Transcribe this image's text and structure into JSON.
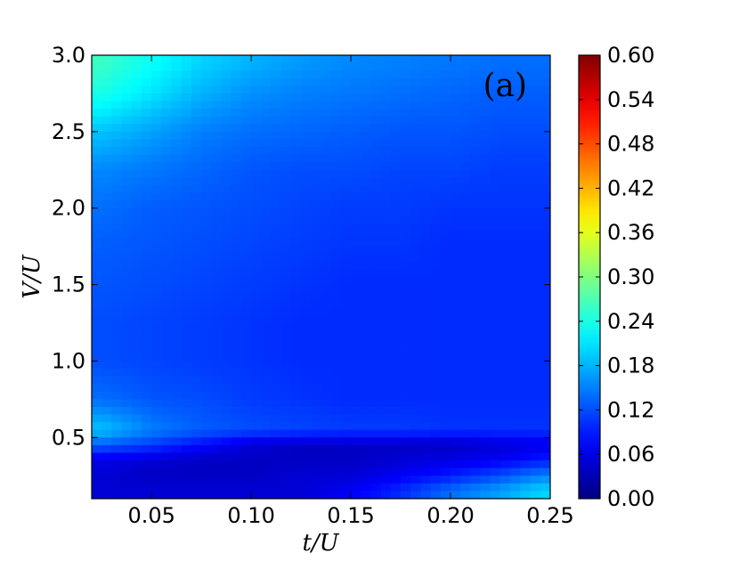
{
  "chart_data": {
    "type": "heatmap",
    "panel_label": "(a)",
    "xlabel": "t/U",
    "ylabel": "V/U",
    "xlim": [
      0.02,
      0.25
    ],
    "ylim": [
      0.1,
      3.0
    ],
    "x_ticks": [
      {
        "value": 0.05,
        "label": "0.05"
      },
      {
        "value": 0.1,
        "label": "0.10"
      },
      {
        "value": 0.15,
        "label": "0.15"
      },
      {
        "value": 0.2,
        "label": "0.20"
      },
      {
        "value": 0.25,
        "label": "0.25"
      }
    ],
    "y_ticks": [
      {
        "value": 0.5,
        "label": "0.5"
      },
      {
        "value": 1.0,
        "label": "1.0"
      },
      {
        "value": 1.5,
        "label": "1.5"
      },
      {
        "value": 2.0,
        "label": "2.0"
      },
      {
        "value": 2.5,
        "label": "2.5"
      },
      {
        "value": 3.0,
        "label": "3.0"
      }
    ],
    "colorbar": {
      "colormap": "jet",
      "range": [
        0.0,
        0.6
      ],
      "ticks": [
        {
          "value": 0.0,
          "label": "0.00"
        },
        {
          "value": 0.06,
          "label": "0.06"
        },
        {
          "value": 0.12,
          "label": "0.12"
        },
        {
          "value": 0.18,
          "label": "0.18"
        },
        {
          "value": 0.24,
          "label": "0.24"
        },
        {
          "value": 0.3,
          "label": "0.30"
        },
        {
          "value": 0.36,
          "label": "0.36"
        },
        {
          "value": 0.42,
          "label": "0.42"
        },
        {
          "value": 0.48,
          "label": "0.48"
        },
        {
          "value": 0.54,
          "label": "0.54"
        },
        {
          "value": 0.6,
          "label": "0.60"
        }
      ]
    },
    "x": [
      0.025,
      0.05,
      0.075,
      0.1,
      0.125,
      0.15,
      0.175,
      0.2,
      0.225,
      0.245
    ],
    "y": [
      0.15,
      0.25,
      0.35,
      0.45,
      0.55,
      0.75,
      1.0,
      1.25,
      1.5,
      1.75,
      2.0,
      2.25,
      2.5,
      2.75,
      2.95
    ],
    "values": [
      [
        0.05,
        0.05,
        0.05,
        0.05,
        0.05,
        0.07,
        0.1,
        0.14,
        0.17,
        0.2
      ],
      [
        0.05,
        0.04,
        0.04,
        0.04,
        0.05,
        0.05,
        0.07,
        0.09,
        0.12,
        0.15
      ],
      [
        0.06,
        0.05,
        0.04,
        0.04,
        0.04,
        0.04,
        0.05,
        0.06,
        0.07,
        0.09
      ],
      [
        0.13,
        0.11,
        0.08,
        0.05,
        0.04,
        0.04,
        0.04,
        0.04,
        0.05,
        0.06
      ],
      [
        0.19,
        0.15,
        0.13,
        0.12,
        0.115,
        0.11,
        0.11,
        0.105,
        0.105,
        0.105
      ],
      [
        0.14,
        0.125,
        0.12,
        0.11,
        0.105,
        0.1,
        0.1,
        0.1,
        0.1,
        0.1
      ],
      [
        0.12,
        0.115,
        0.11,
        0.105,
        0.1,
        0.1,
        0.1,
        0.1,
        0.1,
        0.1
      ],
      [
        0.12,
        0.115,
        0.11,
        0.105,
        0.1,
        0.1,
        0.1,
        0.1,
        0.1,
        0.1
      ],
      [
        0.125,
        0.12,
        0.115,
        0.11,
        0.105,
        0.1,
        0.1,
        0.1,
        0.1,
        0.1
      ],
      [
        0.13,
        0.125,
        0.12,
        0.115,
        0.11,
        0.105,
        0.105,
        0.1,
        0.1,
        0.1
      ],
      [
        0.14,
        0.13,
        0.125,
        0.12,
        0.115,
        0.11,
        0.11,
        0.105,
        0.105,
        0.105
      ],
      [
        0.155,
        0.145,
        0.135,
        0.125,
        0.12,
        0.12,
        0.115,
        0.115,
        0.11,
        0.11
      ],
      [
        0.19,
        0.17,
        0.15,
        0.14,
        0.135,
        0.13,
        0.125,
        0.125,
        0.12,
        0.12
      ],
      [
        0.24,
        0.21,
        0.18,
        0.16,
        0.15,
        0.145,
        0.14,
        0.135,
        0.13,
        0.13
      ],
      [
        0.26,
        0.23,
        0.2,
        0.18,
        0.165,
        0.155,
        0.15,
        0.145,
        0.14,
        0.14
      ]
    ],
    "grid": false
  }
}
